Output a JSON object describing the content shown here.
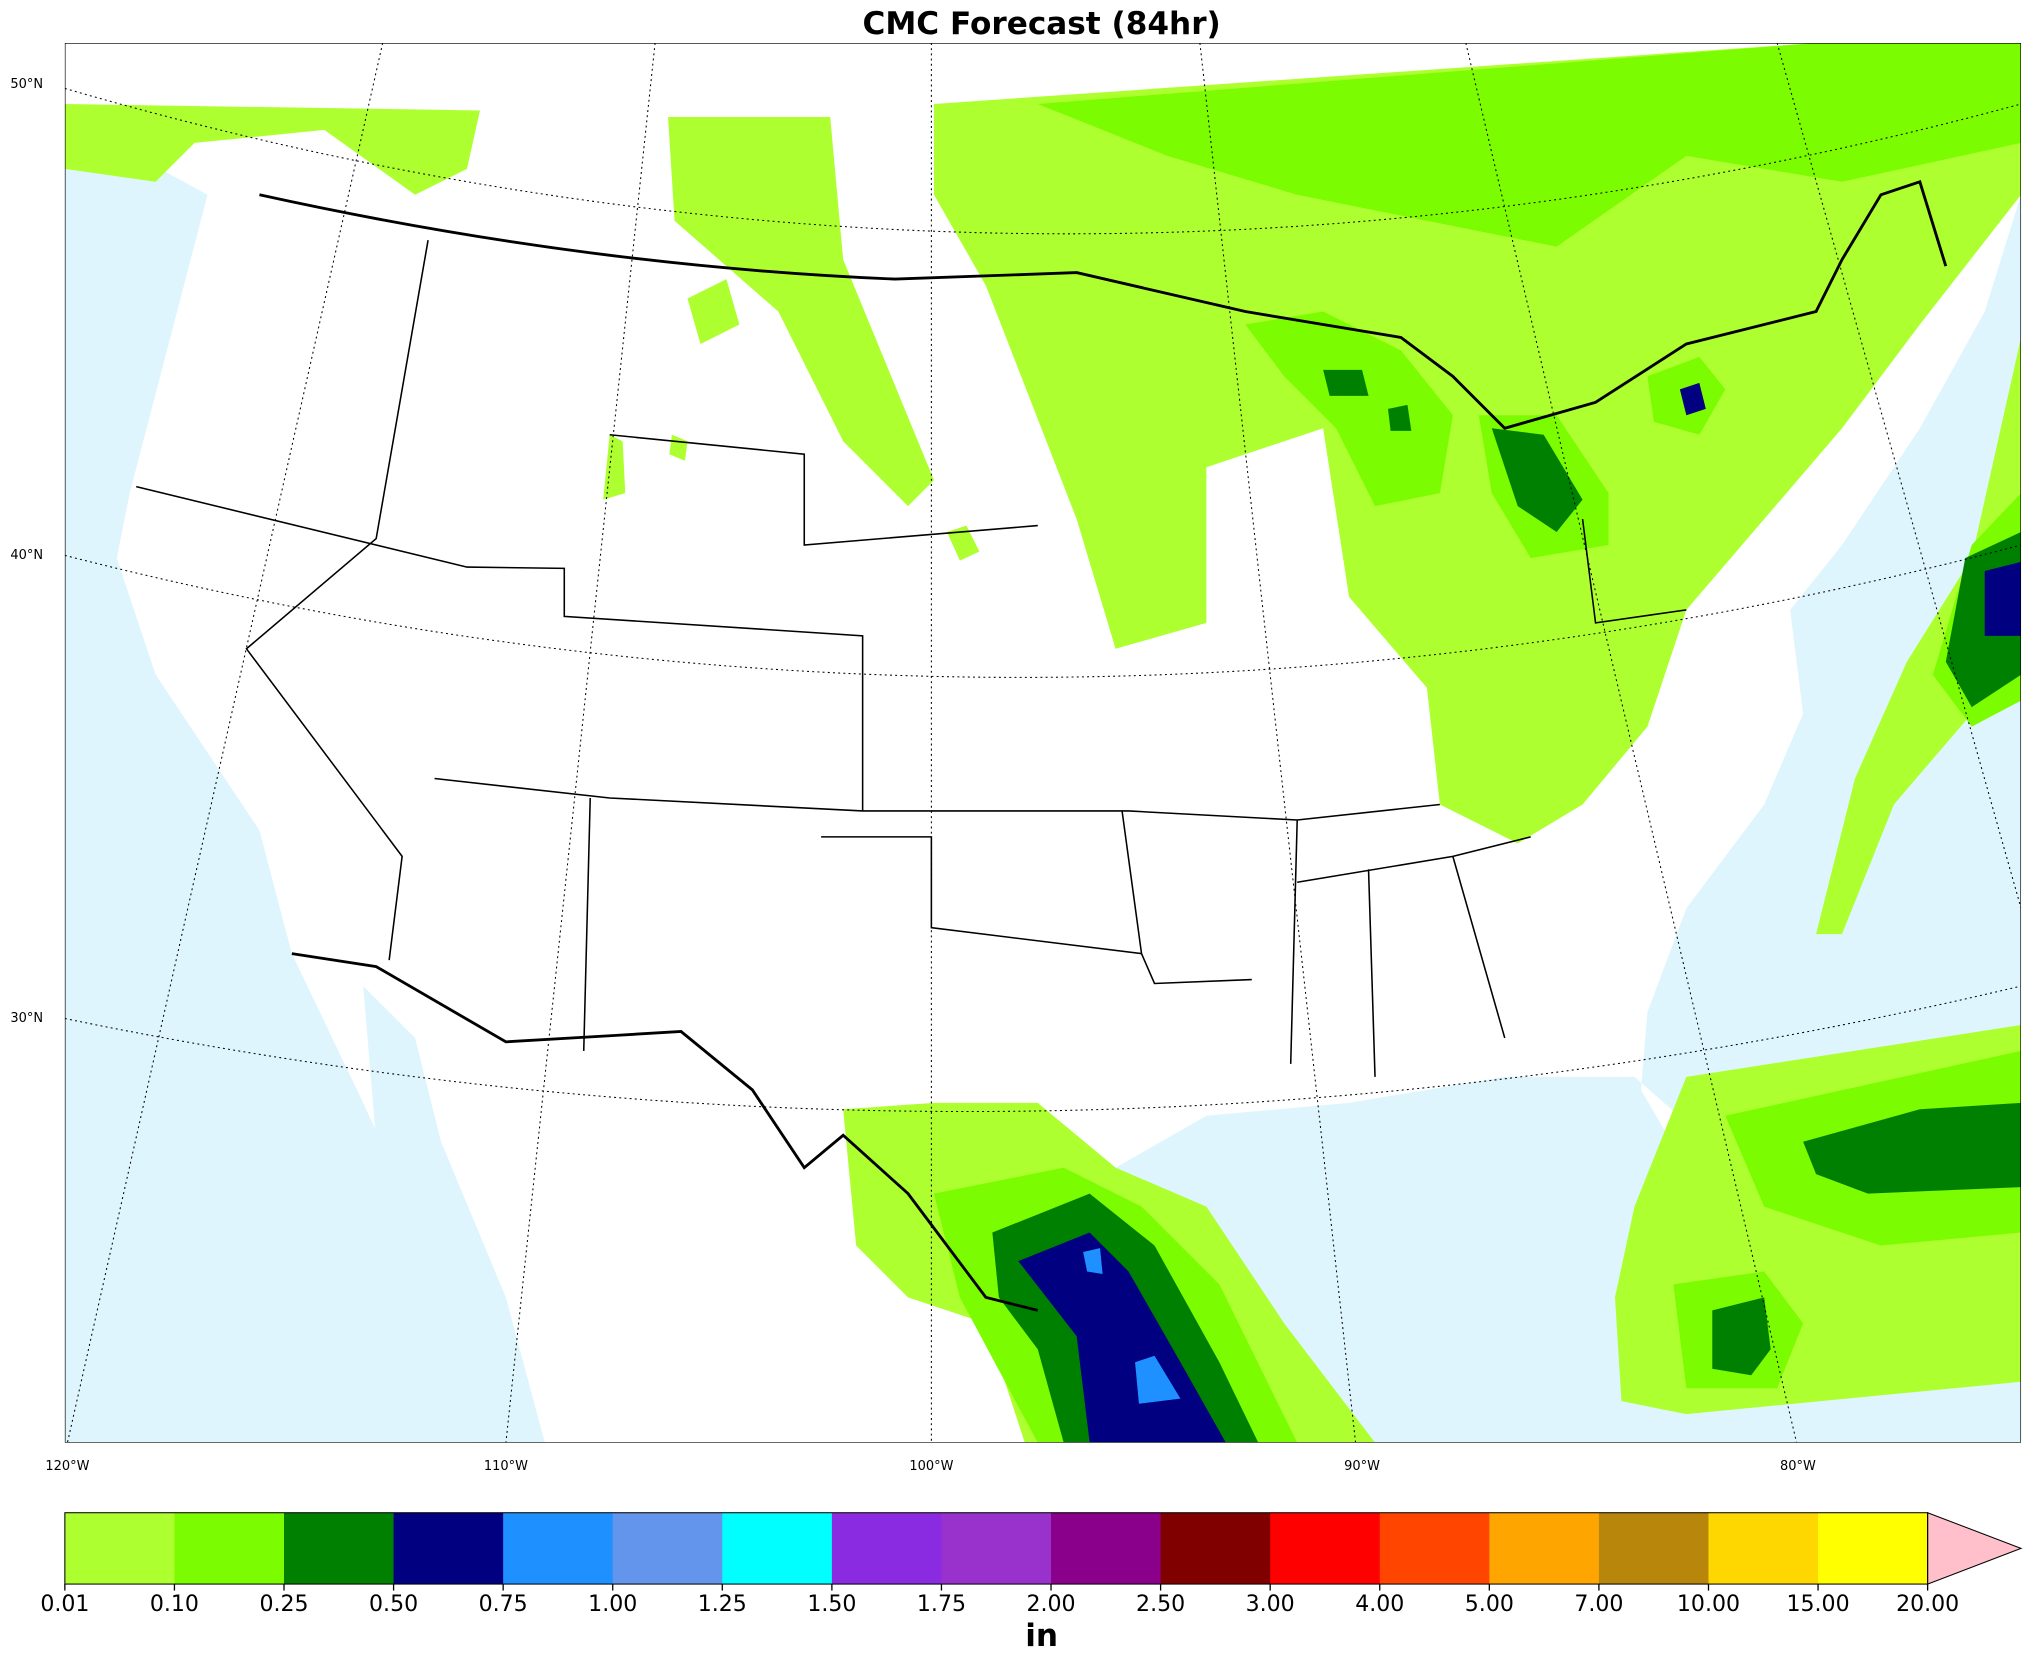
{
  "title": "CMC Forecast (84hr)",
  "map": {
    "lat_labels": [
      "50°N",
      "40°N",
      "30°N"
    ],
    "lon_labels": [
      "120°W",
      "110°W",
      "100°W",
      "90°W",
      "80°W"
    ]
  },
  "colorbar": {
    "unit": "in",
    "levels": [
      {
        "value": 0.01,
        "label": "0.01"
      },
      {
        "value": 0.1,
        "label": "0.10"
      },
      {
        "value": 0.25,
        "label": "0.25"
      },
      {
        "value": 0.5,
        "label": "0.50"
      },
      {
        "value": 0.75,
        "label": "0.75"
      },
      {
        "value": 1,
        "label": "1.00"
      },
      {
        "value": 1.25,
        "label": "1.25"
      },
      {
        "value": 1.5,
        "label": "1.50"
      },
      {
        "value": 1.75,
        "label": "1.75"
      },
      {
        "value": 2,
        "label": "2.00"
      },
      {
        "value": 2.5,
        "label": "2.50"
      },
      {
        "value": 3,
        "label": "3.00"
      },
      {
        "value": 4,
        "label": "4.00"
      },
      {
        "value": 5,
        "label": "5.00"
      },
      {
        "value": 7,
        "label": "7.00"
      },
      {
        "value": 10,
        "label": "10.00"
      },
      {
        "value": 15,
        "label": "15.00"
      },
      {
        "value": 20,
        "label": "20.00"
      }
    ],
    "colors": [
      "#adff2f",
      "#7cfc00",
      "#008000",
      "#000080",
      "#1e90ff",
      "#6495ed",
      "#00ffff",
      "#8a2be2",
      "#9932cc",
      "#8b008b",
      "#800000",
      "#ff0000",
      "#ff4500",
      "#ffa500",
      "#b8860b",
      "#ffd700",
      "#ffff00"
    ],
    "extend_color": "#ffc0cb"
  }
}
